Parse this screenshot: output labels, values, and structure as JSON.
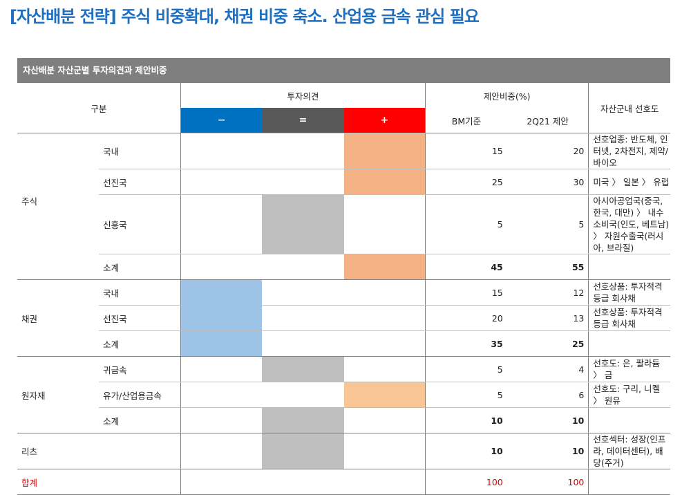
{
  "title": "[자산배분 전략] 주식 비중확대, 채권 비중 축소. 산업용 금속 관심 필요",
  "table_title": "자산배분 자산군별 투자의견과 제안비중",
  "headers": {
    "category": "구분",
    "opinion": "투자의견",
    "minus": "−",
    "equal": "=",
    "plus": "+",
    "weight": "제안비중(%)",
    "bm": "BM기준",
    "proposal": "2Q21 제안",
    "preference": "자산군내 선호도"
  },
  "colors": {
    "minus": "#0070c0",
    "equal": "#595959",
    "plus": "#ff0000",
    "fill_plus": "#f4b183",
    "fill_plus_light": "#f8c594",
    "fill_equal": "#bfbfbf",
    "fill_minus": "#9dc3e6"
  },
  "rows": [
    {
      "group": "주식",
      "sub": "국내",
      "op": "+",
      "bm": "15",
      "prop": "20",
      "pref": "선호업종: 반도체, 인터넷, 2차전지, 제약/바이오"
    },
    {
      "group": "",
      "sub": "선진국",
      "op": "+",
      "bm": "25",
      "prop": "30",
      "pref": "미국 〉 일본 〉 유럽"
    },
    {
      "group": "",
      "sub": "신흥국",
      "op": "=",
      "bm": "5",
      "prop": "5",
      "pref": "아시아공업국(중국, 한국, 대만) 〉 내수소비국(인도, 베트남) 〉 자원수출국(러시아, 브라질)"
    },
    {
      "group": "",
      "sub": "소계",
      "op": "+",
      "bm": "45",
      "prop": "55",
      "pref": "",
      "bold": true,
      "end": true
    },
    {
      "group": "채권",
      "sub": "국내",
      "op": "-",
      "bm": "15",
      "prop": "12",
      "pref": "선호상품: 투자적격등급 회사채"
    },
    {
      "group": "",
      "sub": "선진국",
      "op": "-",
      "bm": "20",
      "prop": "13",
      "pref": "선호상품: 투자적격등급 회사채"
    },
    {
      "group": "",
      "sub": "소계",
      "op": "-",
      "bm": "35",
      "prop": "25",
      "pref": "",
      "bold": true,
      "end": true
    },
    {
      "group": "원자재",
      "sub": "귀금속",
      "op": "=",
      "bm": "5",
      "prop": "4",
      "pref": "선호도: 은, 팔라듐 〉 금"
    },
    {
      "group": "",
      "sub": "유가/산업용금속",
      "op": "+l",
      "bm": "5",
      "prop": "6",
      "pref": "선호도: 구리, 니켈 〉 원유"
    },
    {
      "group": "",
      "sub": "소계",
      "op": "=",
      "bm": "10",
      "prop": "10",
      "pref": "",
      "bold": true,
      "end": true
    },
    {
      "group": "리츠",
      "sub": "",
      "op": "=",
      "bm": "10",
      "prop": "10",
      "pref": "선호섹터: 성장(인프라, 데이터센터), 배당(주거)",
      "bold": true,
      "end": true
    },
    {
      "group": "합계",
      "sub": "",
      "op": "",
      "bm": "100",
      "prop": "100",
      "pref": "",
      "red": true,
      "end": true
    }
  ]
}
